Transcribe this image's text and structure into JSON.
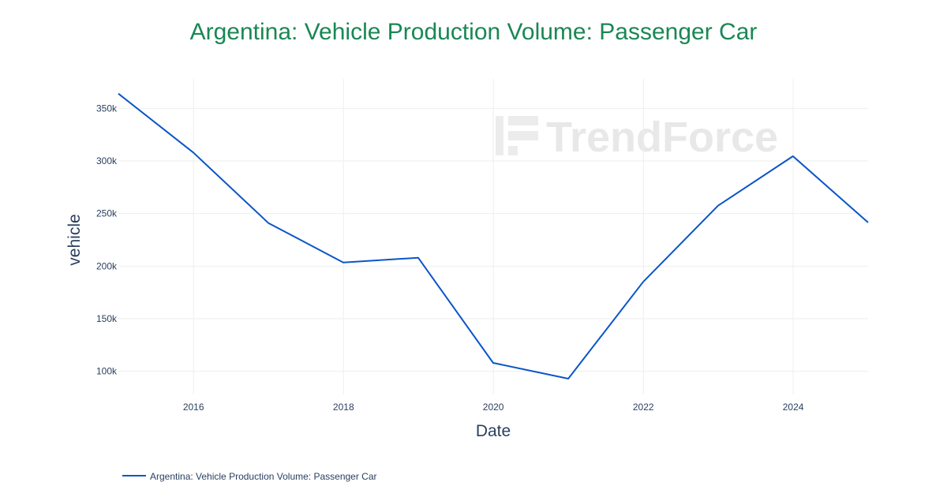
{
  "chart_data": {
    "type": "line",
    "title": "Argentina: Vehicle Production Volume: Passenger Car",
    "xlabel": "Date",
    "ylabel": "vehicle",
    "x": [
      "2014-12-31",
      "2015-12-31",
      "2016-12-31",
      "2017-12-31",
      "2018-12-31",
      "2019-12-31",
      "2020-12-31",
      "2021-12-31",
      "2022-12-31",
      "2023-12-31",
      "2024-12-31"
    ],
    "series": [
      {
        "name": "Argentina: Vehicle Production Volume: Passenger Car",
        "values": [
          364000,
          308000,
          241000,
          203500,
          208000,
          108000,
          93000,
          185000,
          257500,
          304500,
          241500
        ]
      }
    ],
    "xticks": [
      "2016",
      "2018",
      "2020",
      "2022",
      "2024"
    ],
    "yticks": [
      "100k",
      "150k",
      "200k",
      "250k",
      "300k",
      "350k"
    ],
    "ytick_values": [
      100000,
      150000,
      200000,
      250000,
      300000,
      350000
    ],
    "xlim": [
      "2014-12-31",
      "2024-12-31"
    ],
    "ylim": [
      78000,
      378000
    ],
    "grid": true,
    "legend": "bottom-left",
    "colors": {
      "title": "#1a8754",
      "line": "#0b55c9",
      "grid": "#eeeeee",
      "text": "#2a3f5f"
    },
    "watermark": "TrendForce"
  }
}
